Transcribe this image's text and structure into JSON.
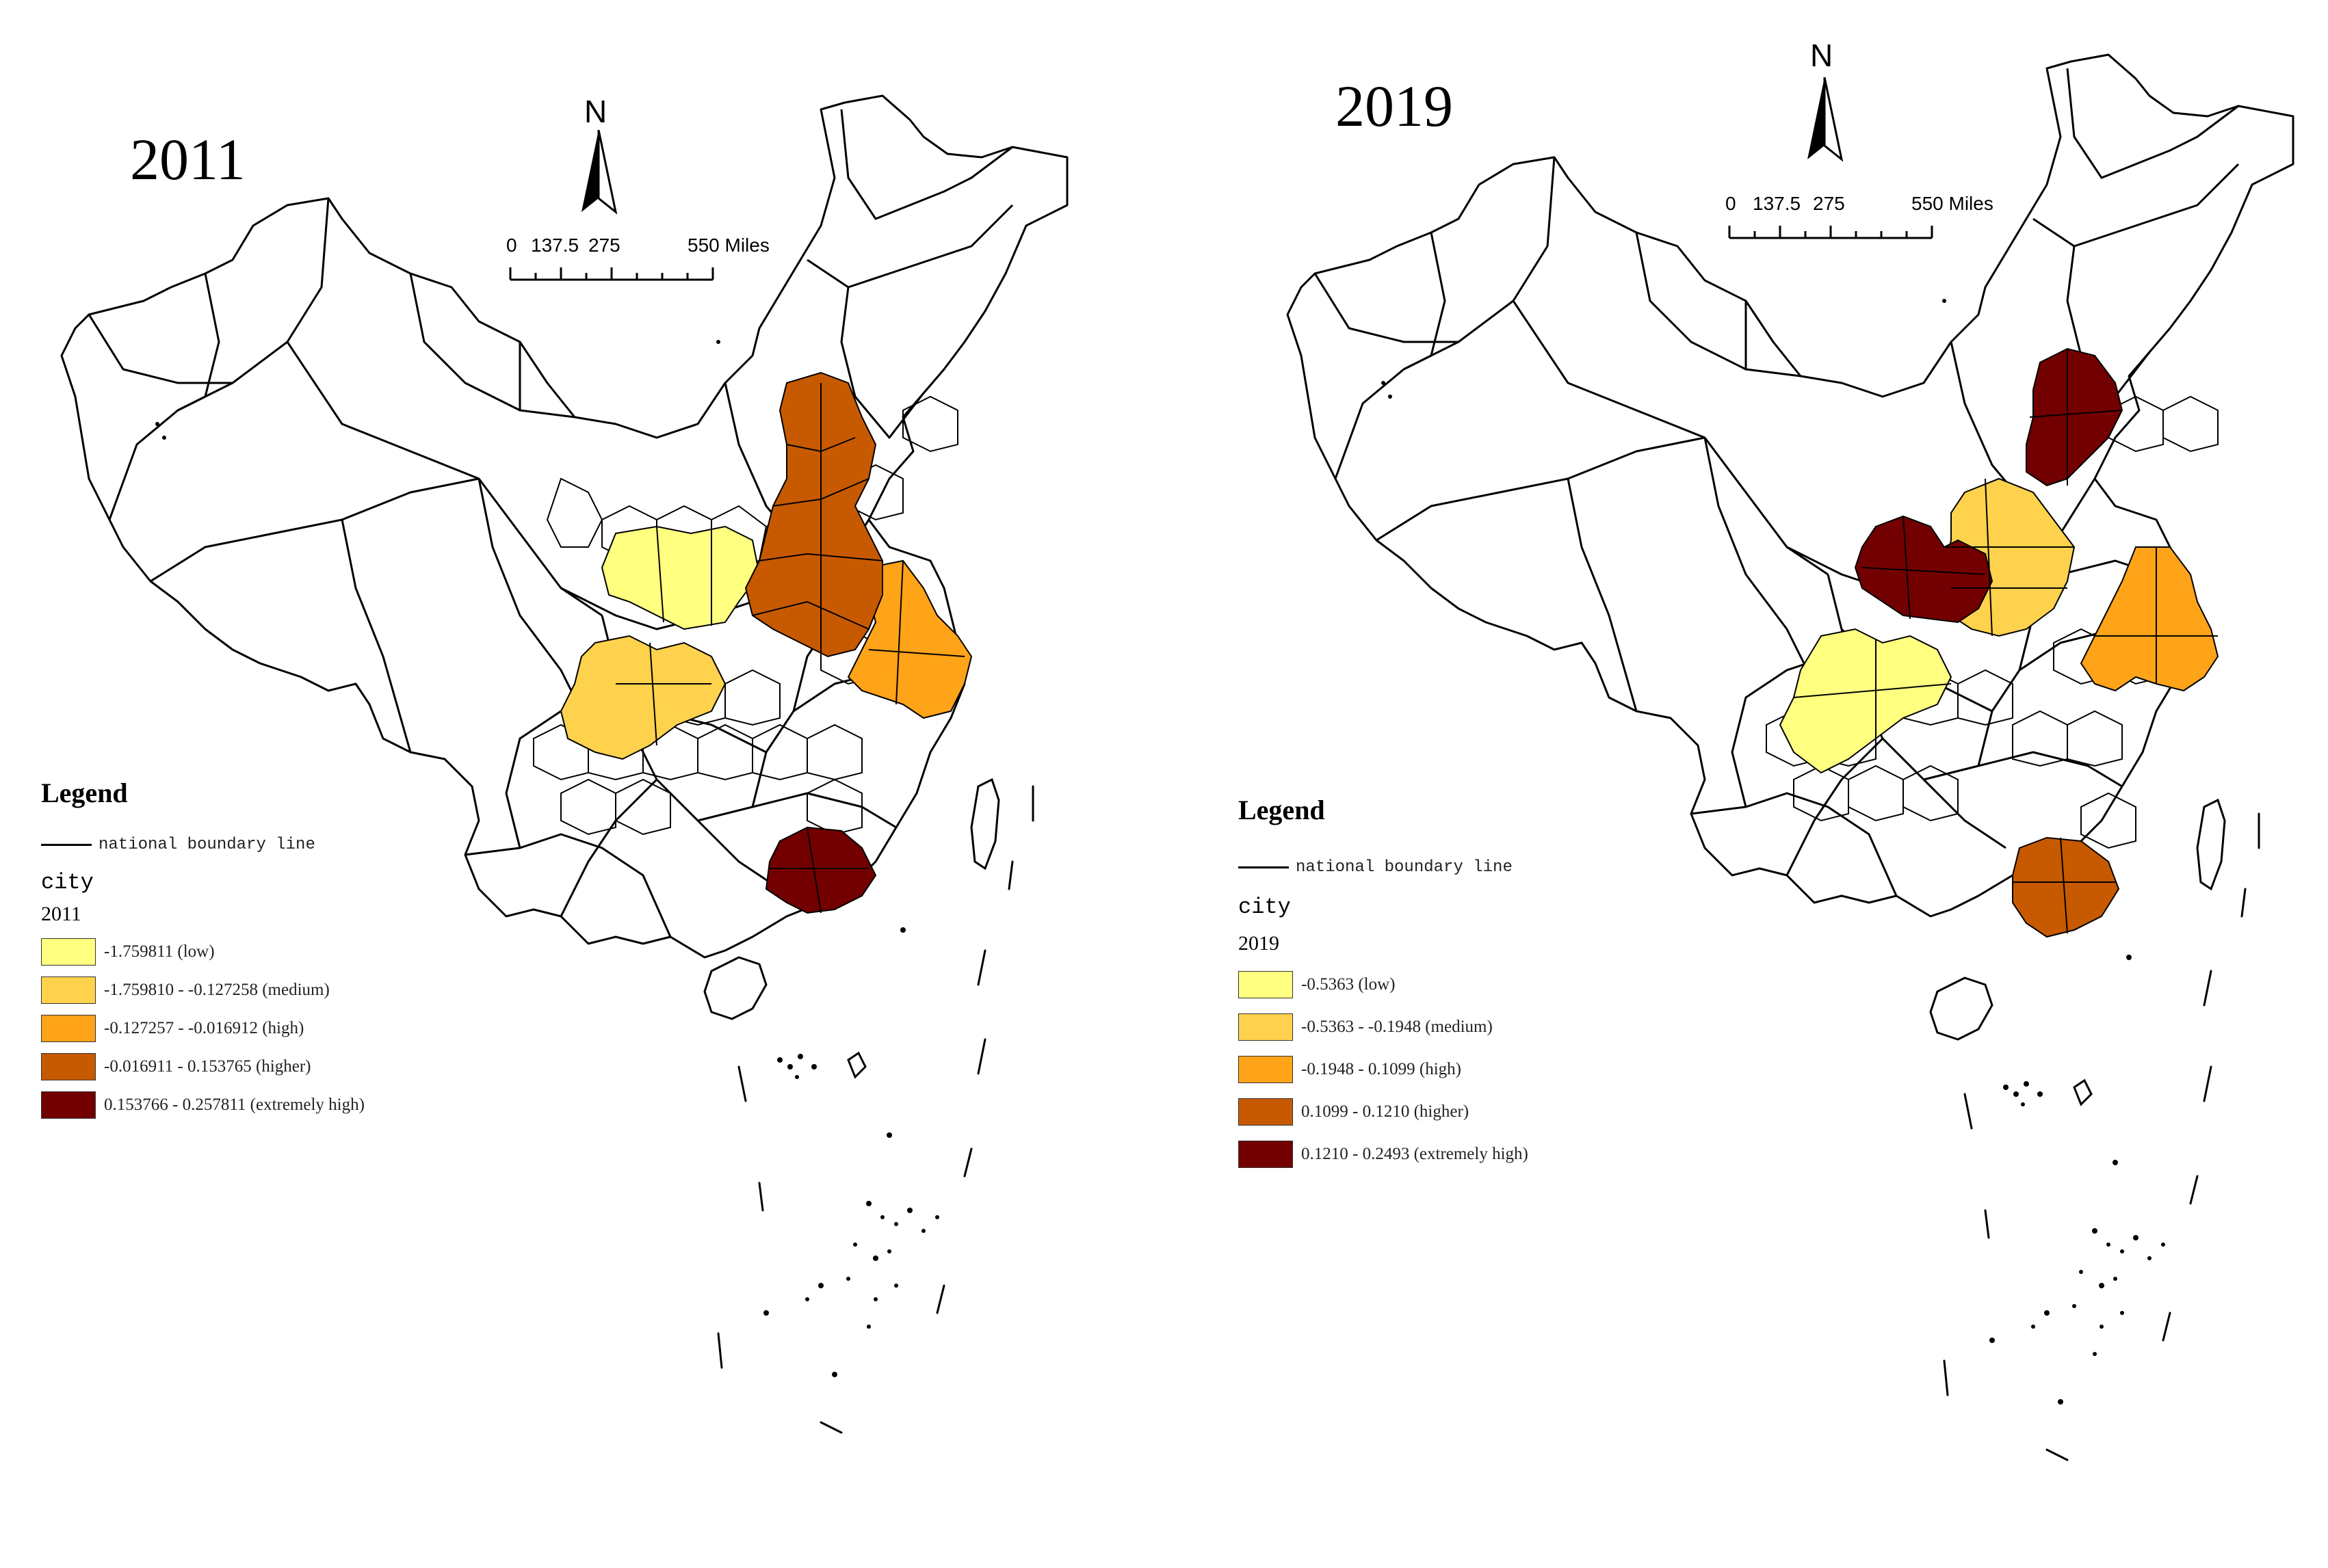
{
  "map_common": {
    "north_label": "N",
    "scale_ticks": [
      "0",
      "137.5",
      "275",
      "550 Miles"
    ],
    "legend_title": "Legend",
    "boundary_label": "national boundary line",
    "layer_name": "city"
  },
  "maps": [
    {
      "year": "2011",
      "field": "2011",
      "classes": [
        {
          "label": "-1.759811 (low)",
          "color": "#ffff80"
        },
        {
          "label": "-1.759810 - -0.127258 (medium)",
          "color": "#ffd24d"
        },
        {
          "label": "-0.127257 - -0.016912 (high)",
          "color": "#ffa319"
        },
        {
          "label": "-0.016911 - 0.153765 (higher)",
          "color": "#c75a00"
        },
        {
          "label": "0.153766 - 0.257811 (extremely high)",
          "color": "#730000"
        }
      ]
    },
    {
      "year": "2019",
      "field": "2019",
      "classes": [
        {
          "label": "-0.5363 (low)",
          "color": "#ffff80"
        },
        {
          "label": "-0.5363 - -0.1948 (medium)",
          "color": "#ffd24d"
        },
        {
          "label": "-0.1948 - 0.1099 (high)",
          "color": "#ffa319"
        },
        {
          "label": "0.1099 - 0.1210 (higher)",
          "color": "#c75a00"
        },
        {
          "label": "0.1210 - 0.2493 (extremely high)",
          "color": "#730000"
        }
      ]
    }
  ]
}
